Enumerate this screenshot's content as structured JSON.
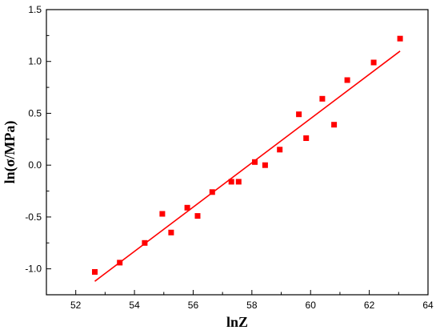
{
  "chart_data": {
    "type": "scatter",
    "title": "",
    "xlabel": "lnZ",
    "ylabel": "ln(σ/MPa)",
    "xlim": [
      51,
      64
    ],
    "ylim": [
      -1.25,
      1.5
    ],
    "x_ticks": [
      52,
      54,
      56,
      58,
      60,
      62,
      64
    ],
    "y_ticks": [
      -1.0,
      -0.5,
      0.0,
      0.5,
      1.0,
      1.5
    ],
    "x_tick_labels": [
      "52",
      "54",
      "56",
      "58",
      "60",
      "62",
      "64"
    ],
    "y_tick_labels": [
      "-1.0",
      "-0.5",
      "0.0",
      "0.5",
      "1.0",
      "1.5"
    ],
    "grid": false,
    "legend": "none",
    "colors": {
      "points": "#ff0000",
      "fit_line": "#ff0000",
      "axis": "#000000"
    },
    "series": [
      {
        "type": "scatter",
        "marker": "square",
        "x": [
          52.65,
          53.5,
          54.35,
          54.95,
          55.25,
          55.8,
          56.15,
          56.65,
          57.3,
          57.55,
          58.1,
          58.45,
          58.95,
          59.6,
          59.85,
          60.4,
          60.8,
          61.25,
          62.15,
          63.05
        ],
        "y": [
          -1.03,
          -0.94,
          -0.75,
          -0.47,
          -0.65,
          -0.41,
          -0.49,
          -0.26,
          -0.16,
          -0.16,
          0.03,
          0.0,
          0.15,
          0.49,
          0.26,
          0.64,
          0.39,
          0.82,
          0.99,
          1.22
        ]
      },
      {
        "type": "line",
        "x": [
          52.65,
          63.05
        ],
        "y": [
          -1.12,
          1.1
        ]
      }
    ]
  }
}
